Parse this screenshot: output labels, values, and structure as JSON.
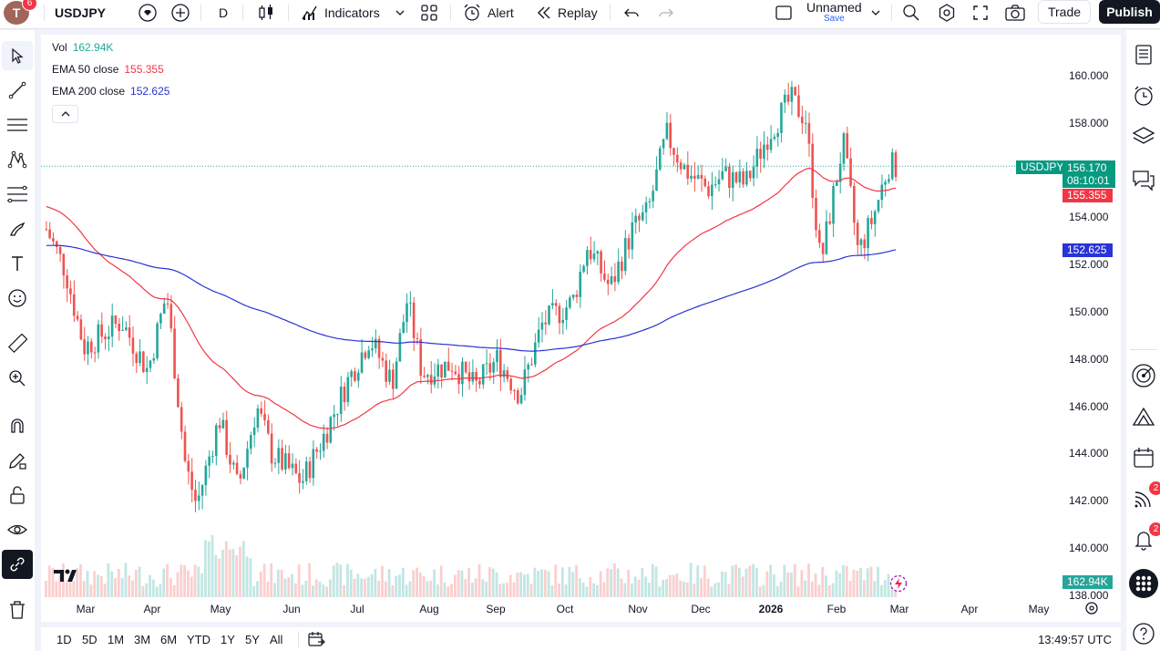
{
  "header": {
    "avatar_letter": "T",
    "avatar_badge": "6",
    "symbol": "USDJPY",
    "interval": "D",
    "indicators_label": "Indicators",
    "alert_label": "Alert",
    "replay_label": "Replay",
    "layout_name": "Unnamed",
    "save_label": "Save",
    "trade_label": "Trade",
    "publish_label": "Publish"
  },
  "legend": {
    "vol_label": "Vol",
    "vol_value": "162.94K",
    "ema50_label": "EMA 50 close",
    "ema50_value": "155.355",
    "ema200_label": "EMA 200 close",
    "ema200_value": "152.625"
  },
  "price_axis": [
    "160.000",
    "158.000",
    "156.000",
    "154.000",
    "152.000",
    "150.000",
    "148.000",
    "146.000",
    "144.000",
    "142.000",
    "140.000",
    "138.000"
  ],
  "time_axis": [
    "Mar",
    "Apr",
    "May",
    "Jun",
    "Jul",
    "Aug",
    "Sep",
    "Oct",
    "Nov",
    "Dec",
    "2026",
    "Feb",
    "Mar",
    "Apr",
    "May"
  ],
  "tags": {
    "symbol_tag": "USDJPY",
    "last_price": "156.170",
    "countdown": "08:10:01",
    "ema50_tag": "155.355",
    "ema200_tag": "152.625",
    "vol_tag": "162.94K"
  },
  "ranges": [
    "1D",
    "5D",
    "1M",
    "3M",
    "6M",
    "YTD",
    "1Y",
    "5Y",
    "All"
  ],
  "clock": "13:49:57 UTC",
  "right_badges": {
    "feed": "2",
    "alerts": "2"
  },
  "colors": {
    "up": "#26a69a",
    "down": "#ef5350",
    "ema50": "#f23645",
    "ema200": "#2933d6",
    "accent": "#2962ff"
  },
  "chart_data": {
    "type": "candlestick",
    "symbol": "USDJPY",
    "interval": "D",
    "ylim": [
      138,
      160
    ],
    "last_price": 156.17,
    "ema50": 155.355,
    "ema200": 152.625,
    "volume_last": "162.94K",
    "months": [
      "Mar",
      "Apr",
      "May",
      "Jun",
      "Jul",
      "Aug",
      "Sep",
      "Oct",
      "Nov",
      "Dec",
      "2026",
      "Feb",
      "Mar"
    ],
    "monthly_close_approx": [
      149.6,
      145.0,
      143.8,
      144.0,
      147.0,
      147.4,
      148.0,
      150.4,
      156.0,
      155.8,
      154.5,
      152.0,
      156.17
    ]
  }
}
